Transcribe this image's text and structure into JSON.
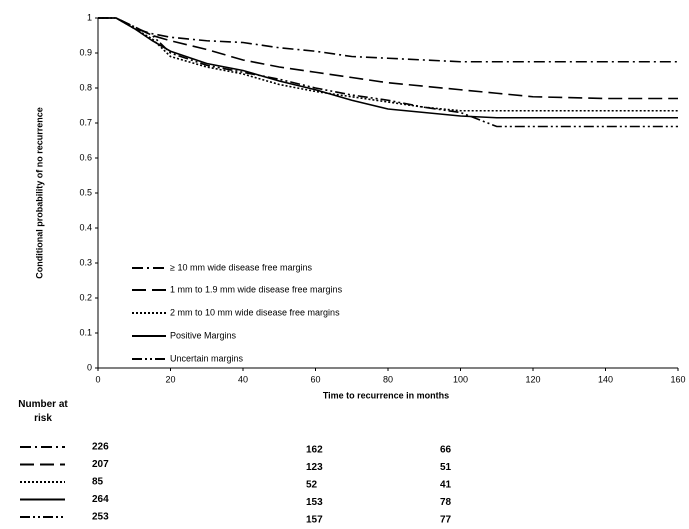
{
  "chart_data": {
    "type": "line",
    "y_label": "Conditional probability of no recurrence",
    "x_label": "Time to recurrence in months",
    "x": [
      0,
      5,
      10,
      15,
      20,
      30,
      40,
      50,
      60,
      70,
      80,
      90,
      100,
      110,
      120,
      140,
      160
    ],
    "series": [
      {
        "name": "≥ 10 mm wide disease free margins",
        "color": "#000000",
        "style": "dash-dot",
        "values": [
          1,
          1,
          0.97,
          0.955,
          0.945,
          0.935,
          0.93,
          0.915,
          0.905,
          0.89,
          0.885,
          0.88,
          0.875,
          0.875,
          0.875,
          0.875,
          0.875
        ]
      },
      {
        "name": "1 mm to 1.9 mm wide disease free margins",
        "color": "#000000",
        "style": "long-dash",
        "values": [
          1,
          1,
          0.975,
          0.95,
          0.935,
          0.91,
          0.88,
          0.86,
          0.845,
          0.83,
          0.815,
          0.805,
          0.795,
          0.785,
          0.775,
          0.77,
          0.77
        ]
      },
      {
        "name": "2 mm to 10 mm wide disease free margins",
        "color": "#000000",
        "style": "dotted",
        "values": [
          1,
          1,
          0.97,
          0.94,
          0.89,
          0.86,
          0.84,
          0.81,
          0.79,
          0.775,
          0.76,
          0.745,
          0.735,
          0.735,
          0.735,
          0.735,
          0.735
        ]
      },
      {
        "name": "Positive Margins",
        "color": "#000000",
        "style": "solid",
        "values": [
          1,
          1,
          0.97,
          0.935,
          0.905,
          0.87,
          0.85,
          0.82,
          0.795,
          0.765,
          0.74,
          0.73,
          0.72,
          0.715,
          0.715,
          0.715,
          0.715
        ]
      },
      {
        "name": "Uncertain margins",
        "color": "#000000",
        "style": "dash-dot-dot",
        "values": [
          1,
          1,
          0.975,
          0.95,
          0.9,
          0.865,
          0.845,
          0.825,
          0.8,
          0.78,
          0.765,
          0.745,
          0.73,
          0.69,
          0.69,
          0.69,
          0.69
        ]
      }
    ],
    "xlim": [
      0,
      160
    ],
    "xticks": [
      0,
      20,
      40,
      60,
      80,
      100,
      120,
      140,
      160
    ],
    "ylim": [
      0,
      1
    ],
    "yticks": [
      0,
      0.1,
      0.2,
      0.3,
      0.4,
      0.5,
      0.6,
      0.7,
      0.8,
      0.9,
      1
    ],
    "legend": "lower-left",
    "at_risk": {
      "header": "Number at risk",
      "rows": [
        [
          226,
          162,
          66
        ],
        [
          207,
          123,
          51
        ],
        [
          85,
          52,
          41
        ],
        [
          264,
          153,
          78
        ],
        [
          253,
          157,
          77
        ]
      ]
    }
  }
}
